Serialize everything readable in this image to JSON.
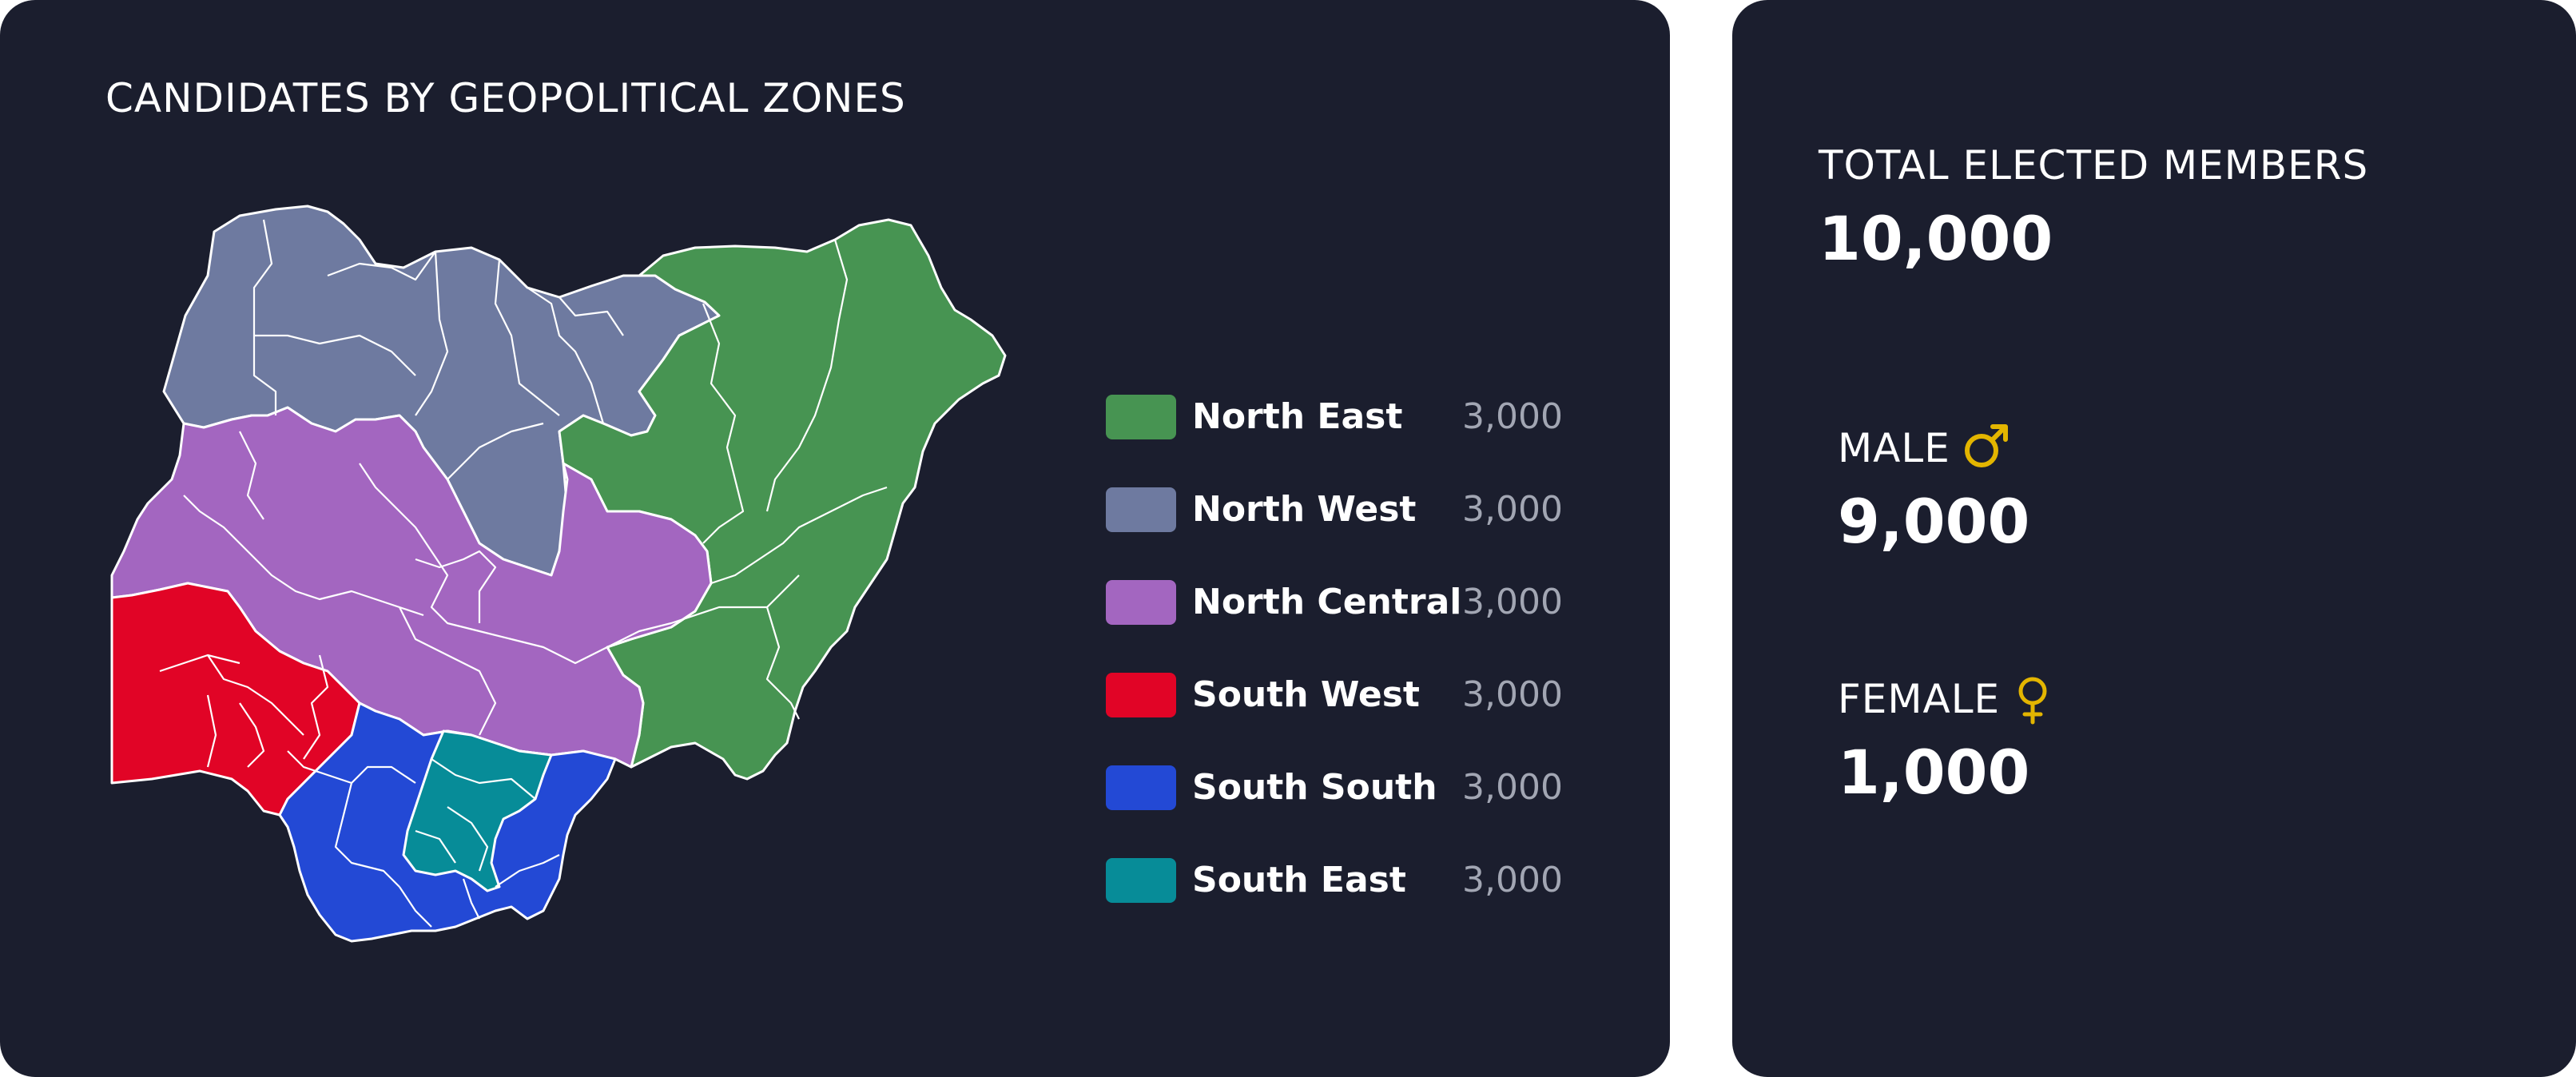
{
  "map_panel": {
    "title": "CANDIDATES BY GEOPOLITICAL ZONES"
  },
  "legend": {
    "items": [
      {
        "label": "North East",
        "value": "3,000",
        "color": "#479452"
      },
      {
        "label": "North West",
        "value": "3,000",
        "color": "#6e7aa0"
      },
      {
        "label": "North Central",
        "value": "3,000",
        "color": "#a366c0"
      },
      {
        "label": "South West",
        "value": "3,000",
        "color": "#e10426"
      },
      {
        "label": "South South",
        "value": "3,000",
        "color": "#2349d5"
      },
      {
        "label": "South East",
        "value": "3,000",
        "color": "#078c98"
      }
    ]
  },
  "stats": {
    "total": {
      "label": "TOTAL ELECTED MEMBERS",
      "value": "10,000"
    },
    "male": {
      "label": "MALE",
      "value": "9,000",
      "icon": "male-symbol-icon"
    },
    "female": {
      "label": "FEMALE",
      "value": "1,000",
      "icon": "female-symbol-icon"
    }
  },
  "colors": {
    "card_background": "#1b1e2e",
    "gender_icon": "#e3b500",
    "border": "#ffffff"
  }
}
